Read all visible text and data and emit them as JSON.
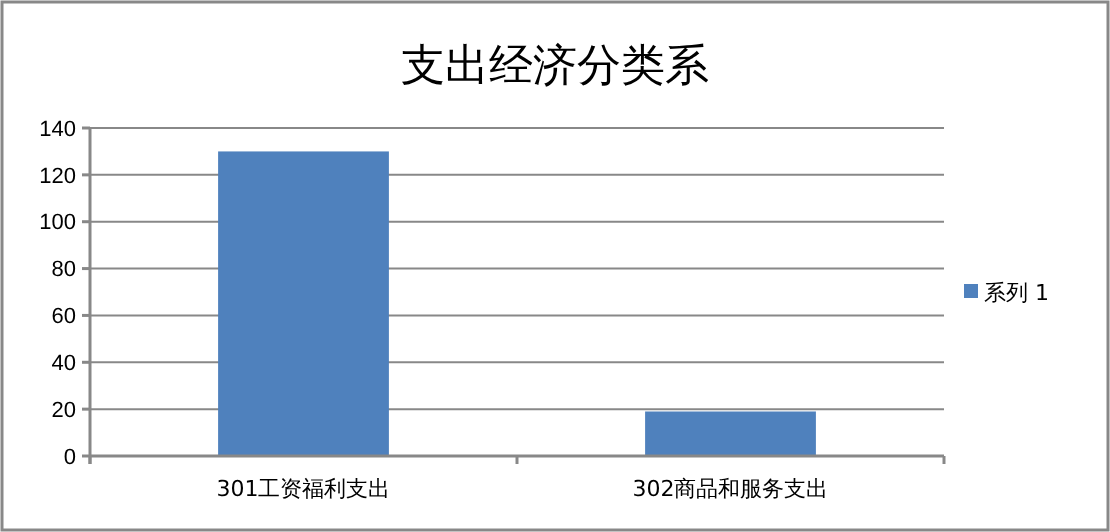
{
  "chart_data": {
    "type": "bar",
    "title": "支出经济分类系",
    "categories": [
      "301工资福利支出",
      "302商品和服务支出"
    ],
    "series": [
      {
        "name": "系列 1",
        "color": "#4f81bd",
        "values": [
          130,
          19
        ]
      }
    ],
    "ylim": [
      0,
      140
    ],
    "yticks": [
      0,
      20,
      40,
      60,
      80,
      100,
      120,
      140
    ],
    "grid": "y",
    "legend": "right"
  }
}
